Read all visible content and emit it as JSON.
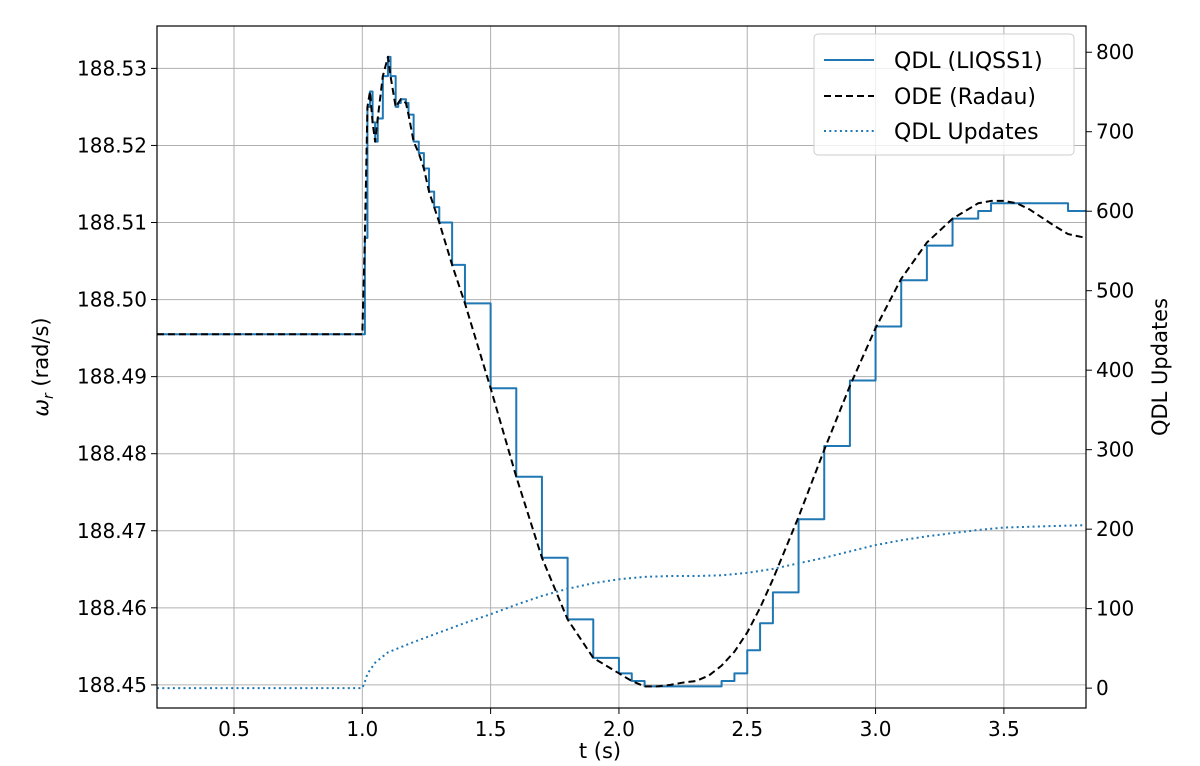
{
  "chart_data": {
    "type": "line",
    "xlabel": "t (s)",
    "ylabel": "ω_r (rad/s)",
    "ylabel_base": "ω",
    "ylabel_sub": "r",
    "ylabel_unit": " (rad/s)",
    "y2label": "QDL Updates",
    "xlim": [
      0.2,
      3.82
    ],
    "ylim": [
      188.447,
      188.5355
    ],
    "y2lim": [
      -25,
      833
    ],
    "x_ticks": [
      0.5,
      1.0,
      1.5,
      2.0,
      2.5,
      3.0,
      3.5
    ],
    "x_tick_labels": [
      "0.5",
      "1.0",
      "1.5",
      "2.0",
      "2.5",
      "3.0",
      "3.5"
    ],
    "y_ticks": [
      188.45,
      188.46,
      188.47,
      188.48,
      188.49,
      188.5,
      188.51,
      188.52,
      188.53
    ],
    "y_tick_labels": [
      "188.45",
      "188.46",
      "188.47",
      "188.48",
      "188.49",
      "188.50",
      "188.51",
      "188.52",
      "188.53"
    ],
    "y2_ticks": [
      0,
      100,
      200,
      300,
      400,
      500,
      600,
      700,
      800
    ],
    "y2_tick_labels": [
      "0",
      "100",
      "200",
      "300",
      "400",
      "500",
      "600",
      "700",
      "800"
    ],
    "grid": true,
    "legend_position": "top-right",
    "colors": {
      "qdl": "#1f77b4",
      "ode": "#000000",
      "updates": "#1f77b4"
    },
    "series": [
      {
        "name": "QDL (LIQSS1)",
        "style": "solid-step",
        "axis": "left",
        "x": [
          0.2,
          1.0,
          1.01,
          1.02,
          1.03,
          1.04,
          1.05,
          1.06,
          1.08,
          1.1,
          1.11,
          1.13,
          1.14,
          1.15,
          1.17,
          1.18,
          1.2,
          1.22,
          1.24,
          1.26,
          1.28,
          1.3,
          1.35,
          1.4,
          1.5,
          1.6,
          1.7,
          1.8,
          1.9,
          2.0,
          2.05,
          2.1,
          2.15,
          2.2,
          2.25,
          2.3,
          2.35,
          2.4,
          2.45,
          2.5,
          2.55,
          2.6,
          2.7,
          2.8,
          2.9,
          3.0,
          3.1,
          3.2,
          3.3,
          3.4,
          3.45,
          3.5,
          3.55,
          3.6,
          3.7,
          3.75,
          3.82
        ],
        "y": [
          188.4955,
          188.4955,
          188.508,
          188.525,
          188.527,
          188.523,
          188.5205,
          188.5235,
          188.529,
          188.5315,
          188.529,
          188.525,
          188.5255,
          188.526,
          188.5255,
          188.524,
          188.5205,
          188.519,
          188.517,
          188.514,
          188.512,
          188.51,
          188.5045,
          188.4995,
          188.4885,
          188.477,
          188.4665,
          188.4585,
          188.4535,
          188.4515,
          188.4505,
          188.4498,
          188.4498,
          188.4498,
          188.4498,
          188.4498,
          188.4498,
          188.4505,
          188.4515,
          188.4545,
          188.458,
          188.462,
          188.4715,
          188.481,
          188.4895,
          188.4965,
          188.5025,
          188.507,
          188.5105,
          188.5115,
          188.5125,
          188.5125,
          188.5125,
          188.5125,
          188.5125,
          188.5115,
          188.5115
        ]
      },
      {
        "name": "ODE (Radau)",
        "style": "dashed",
        "axis": "left",
        "x": [
          0.2,
          1.0,
          1.01,
          1.02,
          1.03,
          1.04,
          1.05,
          1.06,
          1.08,
          1.1,
          1.11,
          1.13,
          1.14,
          1.15,
          1.17,
          1.18,
          1.2,
          1.22,
          1.24,
          1.26,
          1.28,
          1.3,
          1.35,
          1.4,
          1.5,
          1.6,
          1.7,
          1.8,
          1.9,
          2.0,
          2.05,
          2.1,
          2.15,
          2.2,
          2.25,
          2.3,
          2.35,
          2.4,
          2.45,
          2.5,
          2.55,
          2.6,
          2.7,
          2.8,
          2.9,
          3.0,
          3.1,
          3.2,
          3.3,
          3.4,
          3.45,
          3.5,
          3.55,
          3.6,
          3.7,
          3.75,
          3.82
        ],
        "y": [
          188.4955,
          188.4955,
          188.508,
          188.525,
          188.527,
          188.523,
          188.5205,
          188.5235,
          188.529,
          188.5315,
          188.529,
          188.525,
          188.5255,
          188.526,
          188.5255,
          188.524,
          188.5205,
          188.519,
          188.517,
          188.514,
          188.512,
          188.51,
          188.5045,
          188.4995,
          188.4885,
          188.477,
          188.4665,
          188.4585,
          188.4535,
          188.4515,
          188.4505,
          188.4498,
          188.4498,
          188.45,
          188.4503,
          188.4505,
          188.4512,
          188.4525,
          188.4543,
          188.4568,
          188.46,
          188.4637,
          188.4718,
          188.4805,
          188.4888,
          188.4963,
          188.5027,
          188.5074,
          188.5105,
          188.5125,
          188.5128,
          188.5128,
          188.5125,
          188.5117,
          188.5095,
          188.5085,
          188.508
        ]
      },
      {
        "name": "QDL Updates",
        "style": "dotted",
        "axis": "right",
        "x": [
          0.2,
          1.0,
          1.01,
          1.02,
          1.05,
          1.1,
          1.2,
          1.3,
          1.4,
          1.5,
          1.6,
          1.7,
          1.8,
          1.9,
          2.0,
          2.1,
          2.2,
          2.3,
          2.4,
          2.5,
          2.6,
          2.7,
          2.8,
          2.9,
          3.0,
          3.1,
          3.2,
          3.3,
          3.4,
          3.5,
          3.6,
          3.7,
          3.82
        ],
        "y": [
          0,
          0,
          8,
          18,
          32,
          45,
          58,
          70,
          82,
          93,
          105,
          116,
          125,
          132,
          137,
          140,
          141,
          141,
          142,
          145,
          150,
          157,
          164,
          172,
          180,
          186,
          191,
          195,
          199,
          202,
          203,
          204,
          205
        ]
      }
    ]
  }
}
